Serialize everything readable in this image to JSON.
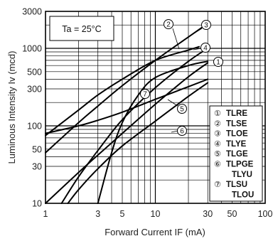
{
  "chart_data": {
    "type": "line",
    "xscale": "log",
    "yscale": "log",
    "xlim": [
      1,
      100
    ],
    "ylim": [
      10,
      3000
    ],
    "xlabel": "Forward Current   IF (mA)",
    "ylabel": "Luminous Intensity   Iv (mcd)",
    "xticks": [
      "1",
      "3",
      "5",
      "10",
      "30",
      "50",
      "100"
    ],
    "xtick_values": [
      1,
      3,
      5,
      10,
      30,
      50,
      100
    ],
    "yticks": [
      "10",
      "30",
      "50",
      "100",
      "300",
      "500",
      "1000",
      "3000"
    ],
    "ytick_values": [
      10,
      30,
      50,
      100,
      300,
      500,
      1000,
      3000
    ],
    "annotation": "Ta = 25°C",
    "grid": true,
    "legend_position": "bottom-right",
    "legend": [
      {
        "marker": "①",
        "label": "TLRE"
      },
      {
        "marker": "②",
        "label": "TLSE"
      },
      {
        "marker": "③",
        "label": "TLOE"
      },
      {
        "marker": "④",
        "label": "TLYE"
      },
      {
        "marker": "⑤",
        "label": "TLGE"
      },
      {
        "marker": "⑥",
        "label": "TLPGE"
      },
      {
        "marker": "",
        "label": "TLYU"
      },
      {
        "marker": "⑦",
        "label": "TLSU"
      },
      {
        "marker": "",
        "label": "TLOU"
      }
    ],
    "series": [
      {
        "marker": "①",
        "x": [
          1,
          2,
          3,
          5,
          10,
          20,
          30
        ],
        "y": [
          10,
          25,
          42,
          80,
          190,
          430,
          650
        ]
      },
      {
        "marker": "②",
        "x": [
          1,
          2,
          3,
          5,
          10,
          20,
          25
        ],
        "y": [
          75,
          160,
          250,
          400,
          700,
          950,
          1050
        ]
      },
      {
        "marker": "③",
        "x": [
          1,
          2,
          3,
          5,
          10,
          20,
          30
        ],
        "y": [
          45,
          110,
          180,
          330,
          700,
          1400,
          2100
        ]
      },
      {
        "marker": "④",
        "x": [
          1.4,
          2,
          3,
          5,
          10,
          20,
          30
        ],
        "y": [
          10,
          22,
          48,
          120,
          310,
          680,
          1000
        ]
      },
      {
        "marker": "⑤",
        "x": [
          1,
          2,
          3,
          5,
          10,
          20,
          30
        ],
        "y": [
          80,
          100,
          118,
          150,
          220,
          320,
          400
        ]
      },
      {
        "marker": "⑥",
        "x": [
          1.6,
          2,
          3,
          5,
          10,
          20,
          30
        ],
        "y": [
          10,
          15,
          28,
          55,
          115,
          240,
          360
        ]
      },
      {
        "marker": "⑦",
        "x": [
          3,
          4,
          5,
          7,
          10,
          20,
          30
        ],
        "y": [
          10,
          45,
          110,
          250,
          420,
          600,
          680
        ]
      }
    ]
  }
}
